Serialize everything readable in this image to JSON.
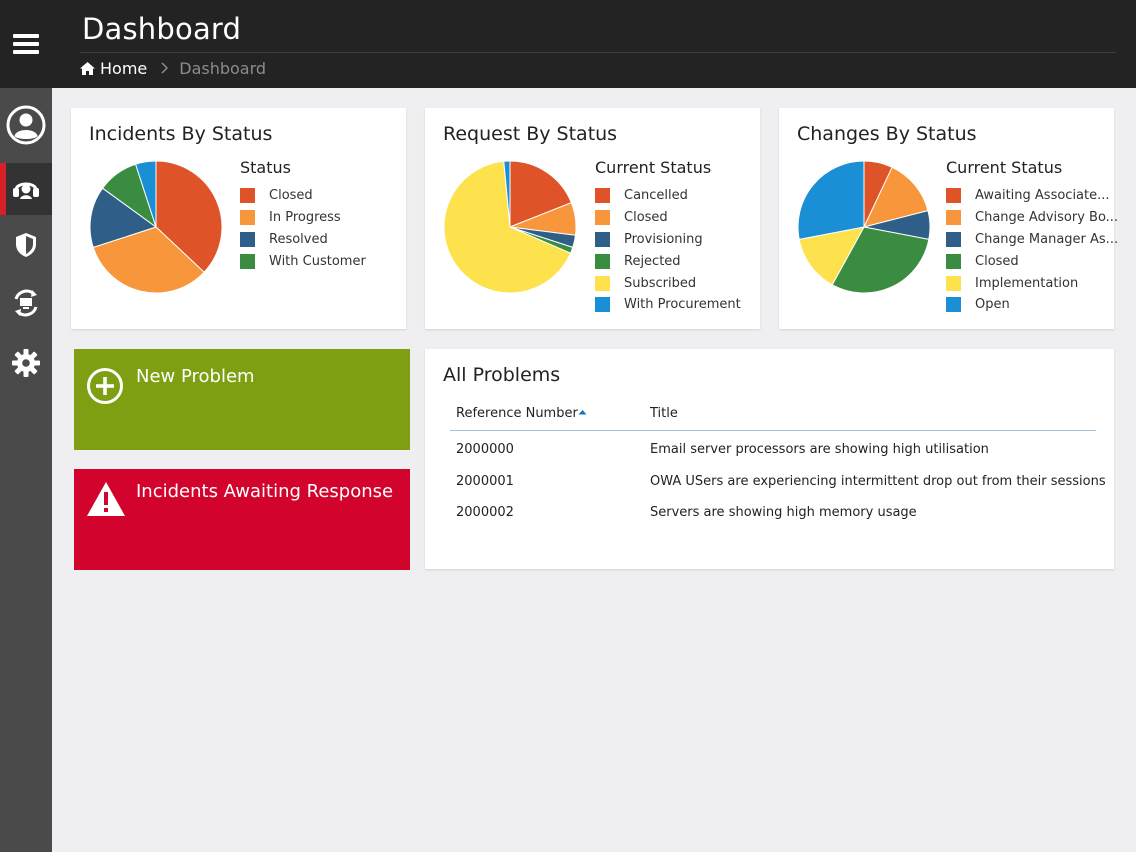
{
  "header": {
    "title": "Dashboard",
    "breadcrumb": {
      "home": "Home",
      "current": "Dashboard"
    }
  },
  "sidebar": {
    "items": [
      {
        "name": "profile",
        "icon": "user-circle-icon"
      },
      {
        "name": "service-desk",
        "icon": "headset-icon",
        "active": true
      },
      {
        "name": "security",
        "icon": "shield-icon"
      },
      {
        "name": "assets",
        "icon": "monitor-cycle-icon"
      },
      {
        "name": "settings",
        "icon": "gear-icon"
      }
    ]
  },
  "colors": {
    "orange_red": "#de5327",
    "orange": "#f7963a",
    "steel_blue": "#3a6d94",
    "navy": "#2f5e88",
    "green": "#3a8c41",
    "yellow": "#fde24d",
    "blue": "#1a8fd6",
    "tile_green": "#7f9f12",
    "tile_red": "#d2042e"
  },
  "incidents": {
    "title": "Incidents By Status",
    "legend_title": "Status",
    "chart_data": {
      "type": "pie",
      "categories": [
        "Closed",
        "In Progress",
        "Resolved",
        "With Customer"
      ],
      "slices": [
        {
          "label": "Closed",
          "value": 37,
          "color": "#de5327"
        },
        {
          "label": "In Progress",
          "value": 33,
          "color": "#f7963a"
        },
        {
          "label": "Resolved",
          "value": 15,
          "color": "#2f5e88"
        },
        {
          "label": "With Customer",
          "value": 10,
          "color": "#3a8c41"
        },
        {
          "label": "",
          "value": 5,
          "color": "#1a8fd6"
        }
      ]
    }
  },
  "requests": {
    "title": "Request By Status",
    "legend_title": "Current Status",
    "chart_data": {
      "type": "pie",
      "categories": [
        "Cancelled",
        "Closed",
        "Provisioning",
        "Rejected",
        "Subscribed",
        "With Procurement"
      ],
      "slices": [
        {
          "label": "Cancelled",
          "value": 19,
          "color": "#de5327"
        },
        {
          "label": "Closed",
          "value": 8,
          "color": "#f7963a"
        },
        {
          "label": "Provisioning",
          "value": 3,
          "color": "#2f5e88"
        },
        {
          "label": "Rejected",
          "value": 1.5,
          "color": "#3a8c41"
        },
        {
          "label": "Subscribed",
          "value": 67,
          "color": "#fde24d"
        },
        {
          "label": "With Procurement",
          "value": 1.5,
          "color": "#1a8fd6"
        }
      ]
    }
  },
  "changes": {
    "title": "Changes By Status",
    "legend_title": "Current Status",
    "chart_data": {
      "type": "pie",
      "categories": [
        "Awaiting Associate...",
        "Change Advisory Bo...",
        "Change Manager As...",
        "Closed",
        "Implementation",
        "Open"
      ],
      "slices": [
        {
          "label": "Awaiting Associate...",
          "value": 7,
          "color": "#de5327"
        },
        {
          "label": "Change Advisory Bo...",
          "value": 14,
          "color": "#f7963a"
        },
        {
          "label": "Change Manager As...",
          "value": 7,
          "color": "#2f5e88"
        },
        {
          "label": "Closed",
          "value": 30,
          "color": "#3a8c41"
        },
        {
          "label": "Implementation",
          "value": 14,
          "color": "#fde24d"
        },
        {
          "label": "Open",
          "value": 28,
          "color": "#1a8fd6"
        }
      ]
    }
  },
  "tiles": {
    "new_problem": "New Problem",
    "incidents_awaiting": "Incidents Awaiting Response"
  },
  "problems": {
    "title": "All Problems",
    "columns": {
      "ref": "Reference Number",
      "title": "Title"
    },
    "rows": [
      {
        "ref": "2000000",
        "title": "Email server processors are showing high utilisation"
      },
      {
        "ref": "2000001",
        "title": "OWA USers are experiencing intermittent drop out from their sessions"
      },
      {
        "ref": "2000002",
        "title": "Servers are showing high memory usage"
      }
    ]
  }
}
